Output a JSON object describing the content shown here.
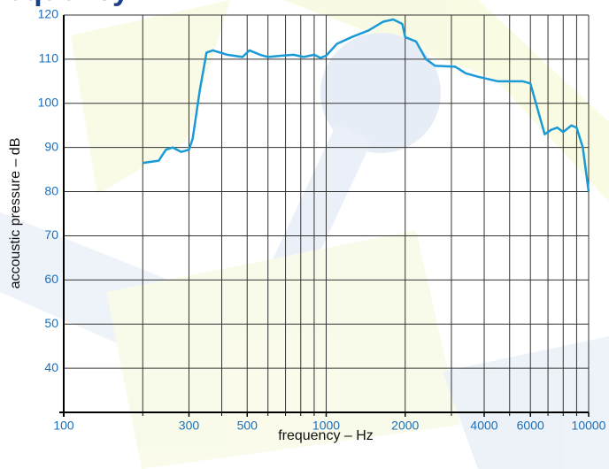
{
  "chart_data": {
    "type": "line",
    "title": "equency",
    "x_label": "frequency – Hz",
    "y_label": "accoustic pressure – dB",
    "log_x": true,
    "grid": true,
    "xlim": [
      100,
      10000
    ],
    "ylim": [
      30,
      120
    ],
    "xticks": [
      100,
      300,
      500,
      1000,
      2000,
      4000,
      6000,
      10000
    ],
    "x_minor_ticks": [
      200,
      400,
      600,
      700,
      800,
      900,
      3000,
      5000,
      7000,
      8000,
      9000
    ],
    "yticks": [
      40,
      50,
      60,
      70,
      80,
      90,
      100,
      110,
      120
    ],
    "series": [
      {
        "color": "#1a9ad6",
        "x": [
          200,
          230,
          245,
          260,
          280,
          300,
          310,
          330,
          350,
          370,
          420,
          480,
          510,
          560,
          600,
          680,
          750,
          820,
          900,
          950,
          1000,
          1100,
          1250,
          1450,
          1650,
          1800,
          1950,
          2000,
          2200,
          2400,
          2600,
          3100,
          3400,
          3800,
          4500,
          5600,
          6000,
          6300,
          6800,
          7200,
          7600,
          8000,
          8600,
          9000,
          9500,
          10000
        ],
        "values": [
          86.5,
          87,
          89.5,
          90,
          89,
          89.5,
          92,
          103,
          111.5,
          112,
          111,
          110.5,
          112,
          111,
          110.5,
          110.8,
          111,
          110.5,
          111,
          110.3,
          110.8,
          113.5,
          115,
          116.5,
          118.5,
          119,
          118,
          115,
          114,
          110,
          108.5,
          108.3,
          106.8,
          106,
          105,
          105,
          104.5,
          100,
          93,
          94,
          94.5,
          93.5,
          95,
          94.5,
          90,
          80
        ]
      }
    ]
  }
}
